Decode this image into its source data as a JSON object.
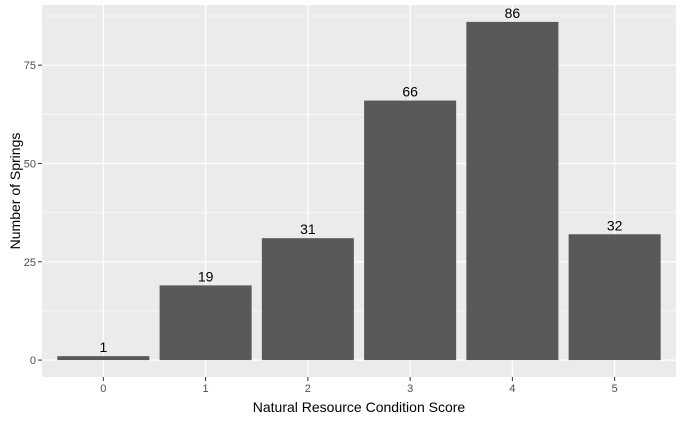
{
  "chart_data": {
    "type": "bar",
    "categories": [
      "0",
      "1",
      "2",
      "3",
      "4",
      "5"
    ],
    "values": [
      1,
      19,
      31,
      66,
      86,
      32
    ],
    "data_labels": [
      "1",
      "19",
      "31",
      "66",
      "86",
      "32"
    ],
    "xlabel": "Natural Resource Condition Score",
    "ylabel": "Number of Springs",
    "ylim": [
      -4.3,
      90.3
    ],
    "yticks": [
      0,
      25,
      50,
      75
    ],
    "ytick_labels": [
      "0",
      "25",
      "50",
      "75"
    ],
    "grid": true,
    "legend": "none",
    "colors": {
      "panel_background": "#ebebeb",
      "grid_line": "#ffffff",
      "bar_fill": "#595959",
      "tick_mark": "#333333",
      "tick_label": "#4d4d4d",
      "text": "#000000"
    }
  }
}
